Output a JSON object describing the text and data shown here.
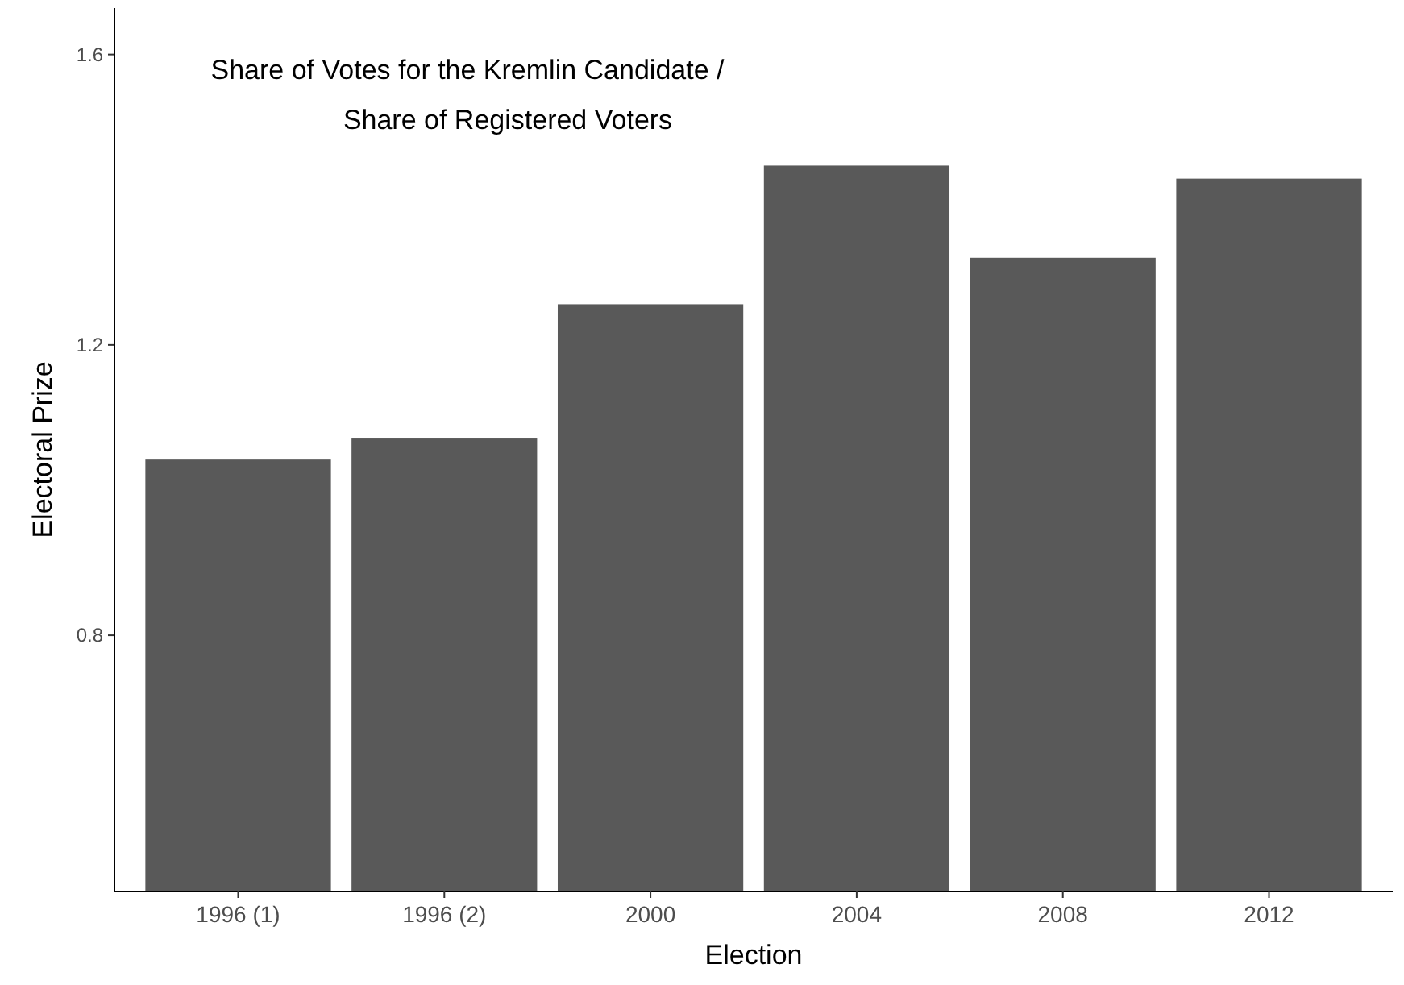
{
  "chart_data": {
    "type": "bar",
    "title": "Share of Votes for the Kremlin Candidate / Share of Registered Voters",
    "xlabel": "Election",
    "ylabel": "Electoral Prize",
    "categories": [
      "1996 (1)",
      "1996 (2)",
      "2000",
      "2004",
      "2008",
      "2012"
    ],
    "values": [
      1.042,
      1.071,
      1.256,
      1.447,
      1.32,
      1.429
    ],
    "color": "#595959",
    "ylim": [
      0.447,
      1.664
    ],
    "yticks": [
      0.8,
      1.2,
      1.6
    ],
    "grid": false
  }
}
